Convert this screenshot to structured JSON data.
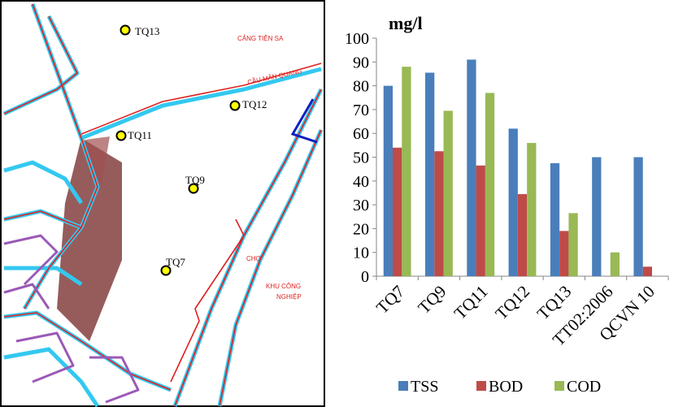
{
  "map": {
    "stations": [
      {
        "label": "TQ13"
      },
      {
        "label": "TQ12"
      },
      {
        "label": "TQ11"
      },
      {
        "label": "TQ9"
      },
      {
        "label": "TQ7"
      }
    ],
    "places": {
      "port": "CẢNG TIÊN SA",
      "bridge": "CẦU MÂN QUANG",
      "market": "CHỢ",
      "industrial_zone": [
        "KHU CÔNG",
        "NGHIỆP"
      ]
    }
  },
  "chart_data": {
    "type": "bar",
    "title": "mg/l",
    "categories": [
      "TQ7",
      "TQ9",
      "TQ11",
      "TQ12",
      "TQ13",
      "TT02:2006",
      "QCVN 10"
    ],
    "series": [
      {
        "name": "TSS",
        "color": "#4a7ebb",
        "values": [
          80,
          85.5,
          91,
          62,
          47.5,
          50,
          50
        ]
      },
      {
        "name": "BOD",
        "color": "#be4b48",
        "values": [
          54,
          52.5,
          46.5,
          34.5,
          19,
          null,
          4
        ]
      },
      {
        "name": "COD",
        "color": "#98b954",
        "values": [
          88,
          69.5,
          77,
          56,
          26.5,
          10,
          null
        ]
      }
    ],
    "ylim": [
      0,
      100
    ],
    "yticks": [
      0,
      10,
      20,
      30,
      40,
      50,
      60,
      70,
      80,
      90,
      100
    ],
    "grid": false,
    "legend": "bottom"
  }
}
